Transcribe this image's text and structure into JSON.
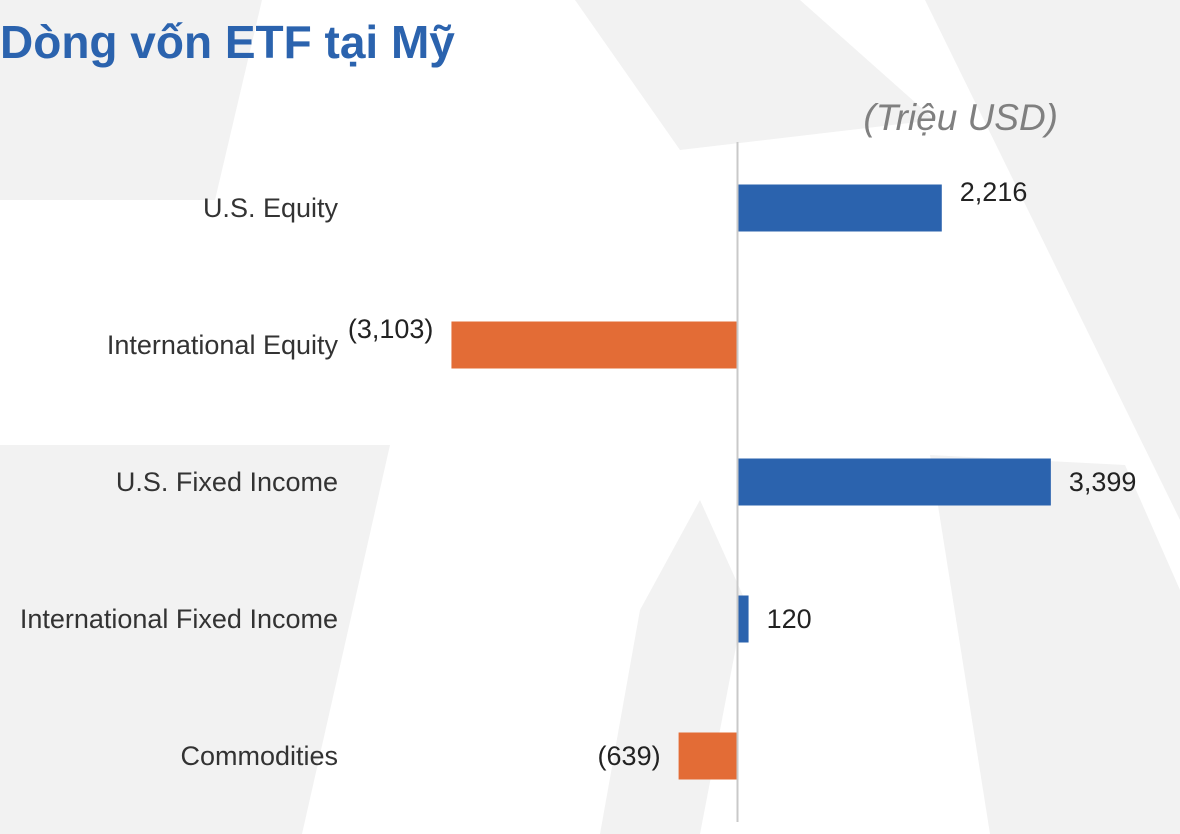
{
  "title": "Dòng vốn ETF tại Mỹ",
  "unit_label": "(Triệu USD)",
  "colors": {
    "title": "#2b63ae",
    "positive": "#2b63ae",
    "negative": "#e36c36",
    "category_text": "#333333",
    "value_text": "#222222",
    "unit_text": "#808080",
    "axis": "#c9c9c9",
    "watermark": "#f2f2f2"
  },
  "chart_data": {
    "type": "bar",
    "orientation": "horizontal",
    "title": "Dòng vốn ETF tại Mỹ",
    "unit": "(Triệu USD)",
    "categories": [
      "U.S. Equity",
      "International Equity",
      "U.S. Fixed Income",
      "International Fixed Income",
      "Commodities"
    ],
    "values": [
      2216,
      -3103,
      3399,
      120,
      -639
    ],
    "value_labels": [
      "2,216",
      "(3,103)",
      "3,399",
      "120",
      "(639)"
    ],
    "xlim": [
      -8000,
      4800
    ],
    "grid": false,
    "legend": "none"
  }
}
